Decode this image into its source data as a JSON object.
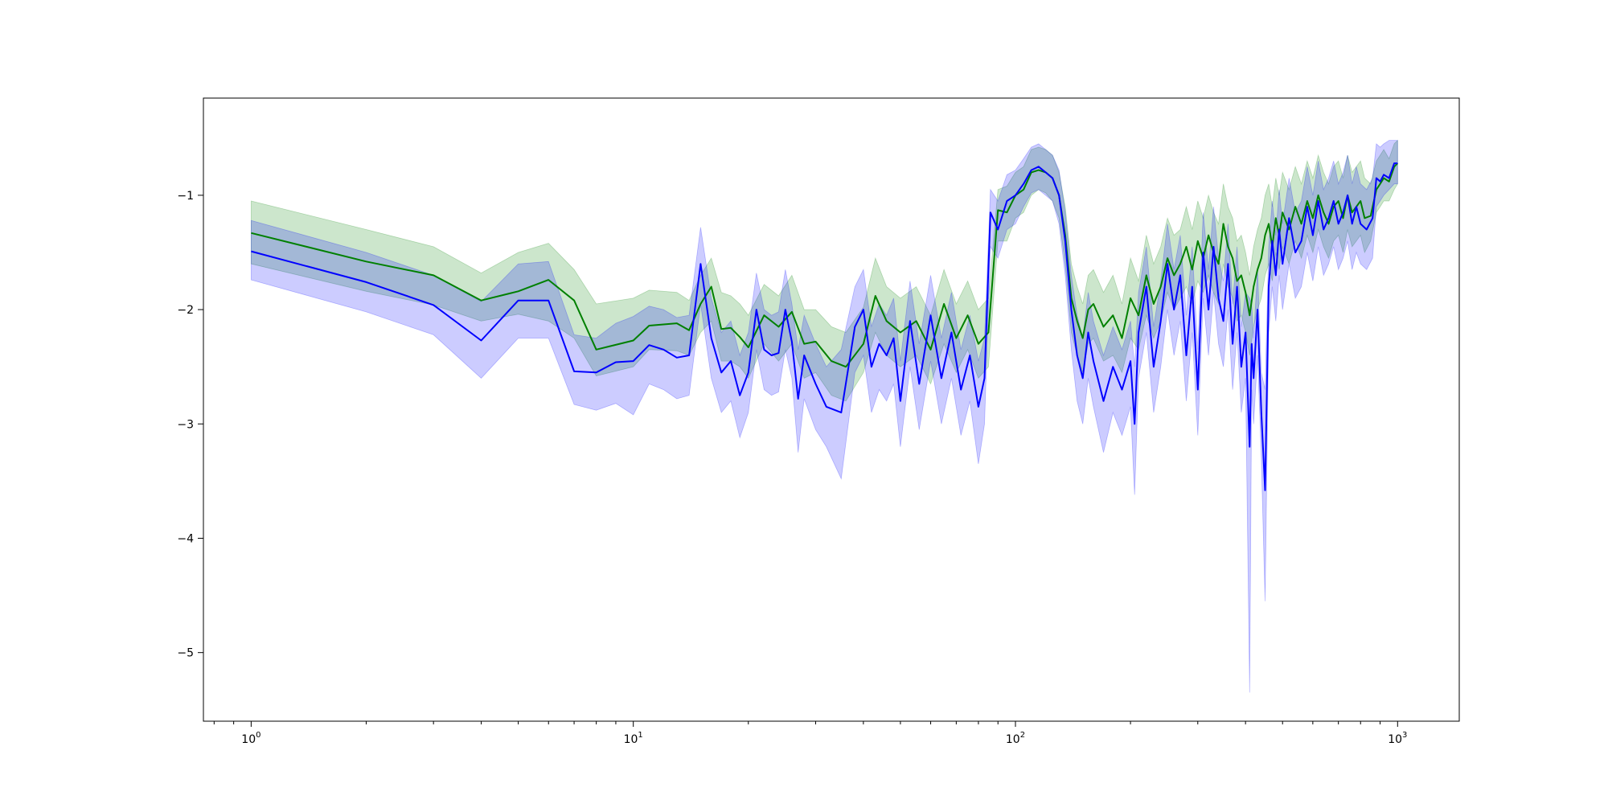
{
  "chart_data": {
    "type": "line",
    "title": "",
    "xlabel": "",
    "ylabel": "",
    "x_scale": "log",
    "xlim": [
      0.75,
      1450
    ],
    "ylim": [
      -5.6,
      -0.15
    ],
    "grid": false,
    "legend": "none",
    "x_ticks": [
      {
        "value": 1,
        "base": "10",
        "exp": "0"
      },
      {
        "value": 10,
        "base": "10",
        "exp": "1"
      },
      {
        "value": 100,
        "base": "10",
        "exp": "2"
      },
      {
        "value": 1000,
        "base": "10",
        "exp": "3"
      }
    ],
    "y_ticks": [
      {
        "value": -1,
        "label": "−1"
      },
      {
        "value": -2,
        "label": "−2"
      },
      {
        "value": -3,
        "label": "−3"
      },
      {
        "value": -4,
        "label": "−4"
      },
      {
        "value": -5,
        "label": "−5"
      }
    ],
    "series": [
      {
        "color": "#008000",
        "band_color": "#008000",
        "x": [
          1,
          2,
          3,
          4,
          5,
          6,
          7,
          8,
          10,
          11,
          13,
          14,
          15,
          16,
          17,
          18,
          19,
          20,
          22,
          24,
          26,
          28,
          30,
          33,
          36,
          40,
          43,
          46,
          50,
          55,
          60,
          65,
          70,
          75,
          80,
          85,
          90,
          95,
          100,
          105,
          110,
          115,
          120,
          125,
          130,
          135,
          140,
          145,
          150,
          155,
          160,
          170,
          180,
          190,
          200,
          210,
          220,
          230,
          240,
          250,
          260,
          270,
          280,
          290,
          300,
          310,
          320,
          330,
          340,
          350,
          360,
          370,
          380,
          390,
          400,
          410,
          420,
          430,
          440,
          450,
          460,
          470,
          480,
          490,
          500,
          520,
          540,
          560,
          580,
          600,
          620,
          640,
          660,
          680,
          700,
          720,
          740,
          760,
          780,
          800,
          820,
          850,
          880,
          900,
          920,
          950,
          980,
          1000
        ],
        "y": [
          -1.33,
          -1.58,
          -1.7,
          -1.92,
          -1.84,
          -1.74,
          -1.92,
          -2.35,
          -2.27,
          -2.14,
          -2.12,
          -2.18,
          -1.95,
          -1.8,
          -2.17,
          -2.16,
          -2.24,
          -2.33,
          -2.05,
          -2.15,
          -2.02,
          -2.3,
          -2.28,
          -2.45,
          -2.5,
          -2.3,
          -1.88,
          -2.1,
          -2.2,
          -2.1,
          -2.35,
          -1.95,
          -2.25,
          -2.05,
          -2.3,
          -2.2,
          -1.13,
          -1.15,
          -1.0,
          -0.95,
          -0.8,
          -0.78,
          -0.8,
          -0.85,
          -1.0,
          -1.35,
          -1.9,
          -2.1,
          -2.25,
          -2.0,
          -1.95,
          -2.15,
          -2.05,
          -2.25,
          -1.9,
          -2.05,
          -1.7,
          -1.95,
          -1.8,
          -1.55,
          -1.7,
          -1.6,
          -1.45,
          -1.65,
          -1.4,
          -1.55,
          -1.35,
          -1.5,
          -1.6,
          -1.25,
          -1.45,
          -1.55,
          -1.75,
          -1.7,
          -1.85,
          -2.05,
          -1.8,
          -1.65,
          -1.55,
          -1.35,
          -1.25,
          -1.45,
          -1.2,
          -1.35,
          -1.15,
          -1.3,
          -1.1,
          -1.25,
          -1.05,
          -1.2,
          -1.0,
          -1.15,
          -1.25,
          -1.1,
          -1.05,
          -1.2,
          -1.0,
          -1.15,
          -1.1,
          -1.05,
          -1.2,
          -1.18,
          -0.95,
          -0.9,
          -0.85,
          -0.88,
          -0.75,
          -0.72
        ],
        "lower": [
          -1.6,
          -1.84,
          -1.96,
          -2.1,
          -2.04,
          -2.1,
          -2.25,
          -2.58,
          -2.5,
          -2.35,
          -2.36,
          -2.4,
          -2.2,
          -2.1,
          -2.45,
          -2.45,
          -2.5,
          -2.6,
          -2.3,
          -2.45,
          -2.3,
          -2.6,
          -2.55,
          -2.75,
          -2.8,
          -2.55,
          -2.2,
          -2.4,
          -2.5,
          -2.4,
          -2.65,
          -2.3,
          -2.55,
          -2.35,
          -2.6,
          -2.5,
          -1.4,
          -1.4,
          -1.2,
          -1.15,
          -1.0,
          -0.95,
          -0.98,
          -1.05,
          -1.2,
          -1.6,
          -2.2,
          -2.4,
          -2.55,
          -2.3,
          -2.25,
          -2.45,
          -2.4,
          -2.55,
          -2.25,
          -2.35,
          -2.05,
          -2.25,
          -2.1,
          -1.85,
          -2.0,
          -1.9,
          -1.8,
          -1.95,
          -1.75,
          -1.85,
          -1.7,
          -1.85,
          -1.95,
          -1.6,
          -1.8,
          -1.9,
          -2.1,
          -2.05,
          -2.2,
          -2.4,
          -2.15,
          -2.0,
          -1.9,
          -1.7,
          -1.6,
          -1.75,
          -1.5,
          -1.65,
          -1.45,
          -1.6,
          -1.4,
          -1.55,
          -1.35,
          -1.5,
          -1.3,
          -1.45,
          -1.55,
          -1.4,
          -1.35,
          -1.5,
          -1.3,
          -1.45,
          -1.4,
          -1.35,
          -1.5,
          -1.4,
          -1.15,
          -1.1,
          -1.05,
          -1.05,
          -0.95,
          -0.9
        ],
        "upper": [
          -1.05,
          -1.3,
          -1.45,
          -1.68,
          -1.5,
          -1.42,
          -1.65,
          -1.95,
          -1.9,
          -1.83,
          -1.85,
          -1.92,
          -1.7,
          -1.55,
          -1.85,
          -1.88,
          -1.95,
          -2.05,
          -1.78,
          -1.88,
          -1.7,
          -2.0,
          -2.0,
          -2.15,
          -2.2,
          -1.98,
          -1.55,
          -1.8,
          -1.9,
          -1.8,
          -2.05,
          -1.65,
          -1.95,
          -1.75,
          -2.0,
          -1.9,
          -0.95,
          -0.92,
          -0.8,
          -0.75,
          -0.6,
          -0.58,
          -0.6,
          -0.65,
          -0.8,
          -1.1,
          -1.6,
          -1.8,
          -1.95,
          -1.7,
          -1.65,
          -1.85,
          -1.7,
          -1.95,
          -1.55,
          -1.75,
          -1.35,
          -1.6,
          -1.45,
          -1.2,
          -1.35,
          -1.3,
          -1.1,
          -1.3,
          -1.05,
          -1.2,
          -1.0,
          -1.15,
          -1.25,
          -0.9,
          -1.1,
          -1.2,
          -1.4,
          -1.35,
          -1.5,
          -1.7,
          -1.45,
          -1.3,
          -1.2,
          -1.0,
          -0.9,
          -1.1,
          -0.85,
          -1.0,
          -0.8,
          -0.95,
          -0.75,
          -0.9,
          -0.7,
          -0.85,
          -0.65,
          -0.8,
          -0.9,
          -0.75,
          -0.7,
          -0.85,
          -0.65,
          -0.8,
          -0.75,
          -0.7,
          -0.85,
          -0.9,
          -0.7,
          -0.65,
          -0.6,
          -0.68,
          -0.55,
          -0.52
        ]
      },
      {
        "color": "#0000ff",
        "band_color": "#0000ff",
        "x": [
          1,
          2,
          3,
          4,
          5,
          6,
          7,
          8,
          9,
          10,
          11,
          12,
          13,
          14,
          15,
          16,
          17,
          18,
          19,
          20,
          21,
          22,
          23,
          24,
          25,
          26,
          27,
          28,
          30,
          32,
          35,
          38,
          40,
          42,
          44,
          46,
          48,
          50,
          53,
          56,
          60,
          64,
          68,
          72,
          76,
          80,
          83,
          86,
          90,
          95,
          100,
          105,
          110,
          115,
          120,
          125,
          130,
          135,
          140,
          145,
          150,
          155,
          160,
          170,
          180,
          190,
          200,
          205,
          210,
          220,
          230,
          240,
          250,
          260,
          270,
          280,
          290,
          300,
          310,
          320,
          330,
          340,
          350,
          360,
          370,
          380,
          390,
          400,
          410,
          415,
          420,
          430,
          440,
          450,
          460,
          470,
          480,
          490,
          500,
          520,
          540,
          560,
          580,
          600,
          620,
          640,
          660,
          680,
          700,
          720,
          740,
          760,
          780,
          800,
          830,
          860,
          880,
          900,
          920,
          950,
          980,
          1000
        ],
        "y": [
          -1.49,
          -1.76,
          -1.96,
          -2.27,
          -1.92,
          -1.92,
          -2.54,
          -2.55,
          -2.46,
          -2.45,
          -2.31,
          -2.35,
          -2.42,
          -2.4,
          -1.6,
          -2.25,
          -2.55,
          -2.45,
          -2.75,
          -2.55,
          -2.0,
          -2.35,
          -2.4,
          -2.38,
          -2.0,
          -2.28,
          -2.78,
          -2.4,
          -2.65,
          -2.85,
          -2.9,
          -2.15,
          -2.0,
          -2.5,
          -2.3,
          -2.4,
          -2.25,
          -2.8,
          -2.1,
          -2.65,
          -2.05,
          -2.6,
          -2.2,
          -2.7,
          -2.4,
          -2.85,
          -2.6,
          -1.15,
          -1.3,
          -1.05,
          -1.0,
          -0.9,
          -0.78,
          -0.75,
          -0.8,
          -0.85,
          -1.0,
          -1.4,
          -2.0,
          -2.4,
          -2.6,
          -2.2,
          -2.45,
          -2.8,
          -2.5,
          -2.7,
          -2.45,
          -3.0,
          -2.2,
          -1.8,
          -2.5,
          -2.1,
          -1.6,
          -2.0,
          -1.7,
          -2.4,
          -1.8,
          -2.7,
          -1.5,
          -2.0,
          -1.45,
          -1.9,
          -2.1,
          -1.6,
          -2.3,
          -1.8,
          -2.5,
          -2.2,
          -3.2,
          -2.3,
          -2.6,
          -2.0,
          -2.9,
          -3.58,
          -1.8,
          -1.4,
          -1.7,
          -1.3,
          -1.6,
          -1.2,
          -1.5,
          -1.4,
          -1.1,
          -1.35,
          -1.05,
          -1.3,
          -1.2,
          -1.05,
          -1.25,
          -1.15,
          -1.0,
          -1.25,
          -1.1,
          -1.25,
          -1.3,
          -1.2,
          -0.85,
          -0.88,
          -0.82,
          -0.85,
          -0.72,
          -0.72
        ],
        "lower": [
          -1.74,
          -2.02,
          -2.22,
          -2.6,
          -2.25,
          -2.25,
          -2.83,
          -2.88,
          -2.82,
          -2.92,
          -2.65,
          -2.7,
          -2.78,
          -2.75,
          -1.95,
          -2.6,
          -2.9,
          -2.8,
          -3.12,
          -2.9,
          -2.35,
          -2.7,
          -2.75,
          -2.72,
          -2.35,
          -2.6,
          -3.25,
          -2.78,
          -3.05,
          -3.2,
          -3.48,
          -2.55,
          -2.4,
          -2.9,
          -2.7,
          -2.8,
          -2.65,
          -3.2,
          -2.5,
          -3.05,
          -2.45,
          -3.0,
          -2.6,
          -3.1,
          -2.8,
          -3.35,
          -3.0,
          -1.45,
          -1.55,
          -1.3,
          -1.25,
          -1.1,
          -0.98,
          -0.95,
          -1.0,
          -1.05,
          -1.25,
          -1.7,
          -2.35,
          -2.8,
          -3.0,
          -2.6,
          -2.85,
          -3.25,
          -2.9,
          -3.1,
          -2.85,
          -3.62,
          -2.6,
          -2.2,
          -2.9,
          -2.5,
          -2.0,
          -2.4,
          -2.1,
          -2.8,
          -2.2,
          -3.1,
          -1.9,
          -2.4,
          -1.85,
          -2.3,
          -2.5,
          -2.0,
          -2.7,
          -2.2,
          -2.9,
          -2.6,
          -5.35,
          -2.7,
          -3.0,
          -2.4,
          -3.3,
          -4.55,
          -2.2,
          -1.8,
          -2.1,
          -1.7,
          -2.0,
          -1.6,
          -1.9,
          -1.8,
          -1.5,
          -1.75,
          -1.45,
          -1.7,
          -1.6,
          -1.45,
          -1.65,
          -1.55,
          -1.4,
          -1.65,
          -1.5,
          -1.6,
          -1.65,
          -1.55,
          -1.1,
          -1.05,
          -1.0,
          -0.95,
          -0.9,
          -0.9
        ],
        "upper": [
          -1.22,
          -1.5,
          -1.7,
          -1.93,
          -1.6,
          -1.58,
          -2.22,
          -2.25,
          -2.12,
          -2.06,
          -1.97,
          -2.0,
          -2.07,
          -2.05,
          -1.28,
          -1.9,
          -2.2,
          -2.1,
          -2.4,
          -2.2,
          -1.68,
          -2.0,
          -2.05,
          -2.02,
          -1.65,
          -1.95,
          -2.35,
          -2.05,
          -2.3,
          -2.5,
          -2.35,
          -1.8,
          -1.65,
          -2.15,
          -1.95,
          -2.05,
          -1.9,
          -2.45,
          -1.75,
          -2.3,
          -1.7,
          -2.25,
          -1.85,
          -2.35,
          -2.05,
          -2.45,
          -2.25,
          -0.95,
          -1.05,
          -0.82,
          -0.78,
          -0.68,
          -0.58,
          -0.55,
          -0.6,
          -0.65,
          -0.78,
          -1.15,
          -1.7,
          -2.05,
          -2.25,
          -1.85,
          -2.1,
          -2.4,
          -2.15,
          -2.35,
          -2.1,
          -2.5,
          -1.85,
          -1.45,
          -2.15,
          -1.75,
          -1.25,
          -1.65,
          -1.35,
          -2.05,
          -1.45,
          -2.35,
          -1.15,
          -1.65,
          -1.1,
          -1.55,
          -1.75,
          -1.25,
          -1.95,
          -1.45,
          -2.15,
          -1.85,
          -1.9,
          -1.95,
          -2.25,
          -1.65,
          -2.55,
          -2.7,
          -1.45,
          -1.05,
          -1.35,
          -0.95,
          -1.25,
          -0.85,
          -1.15,
          -1.05,
          -0.75,
          -1.0,
          -0.7,
          -0.95,
          -0.85,
          -0.7,
          -0.9,
          -0.8,
          -0.65,
          -0.9,
          -0.75,
          -0.9,
          -0.95,
          -0.85,
          -0.55,
          -0.58,
          -0.55,
          -0.52,
          -0.52,
          -0.52
        ]
      }
    ]
  }
}
